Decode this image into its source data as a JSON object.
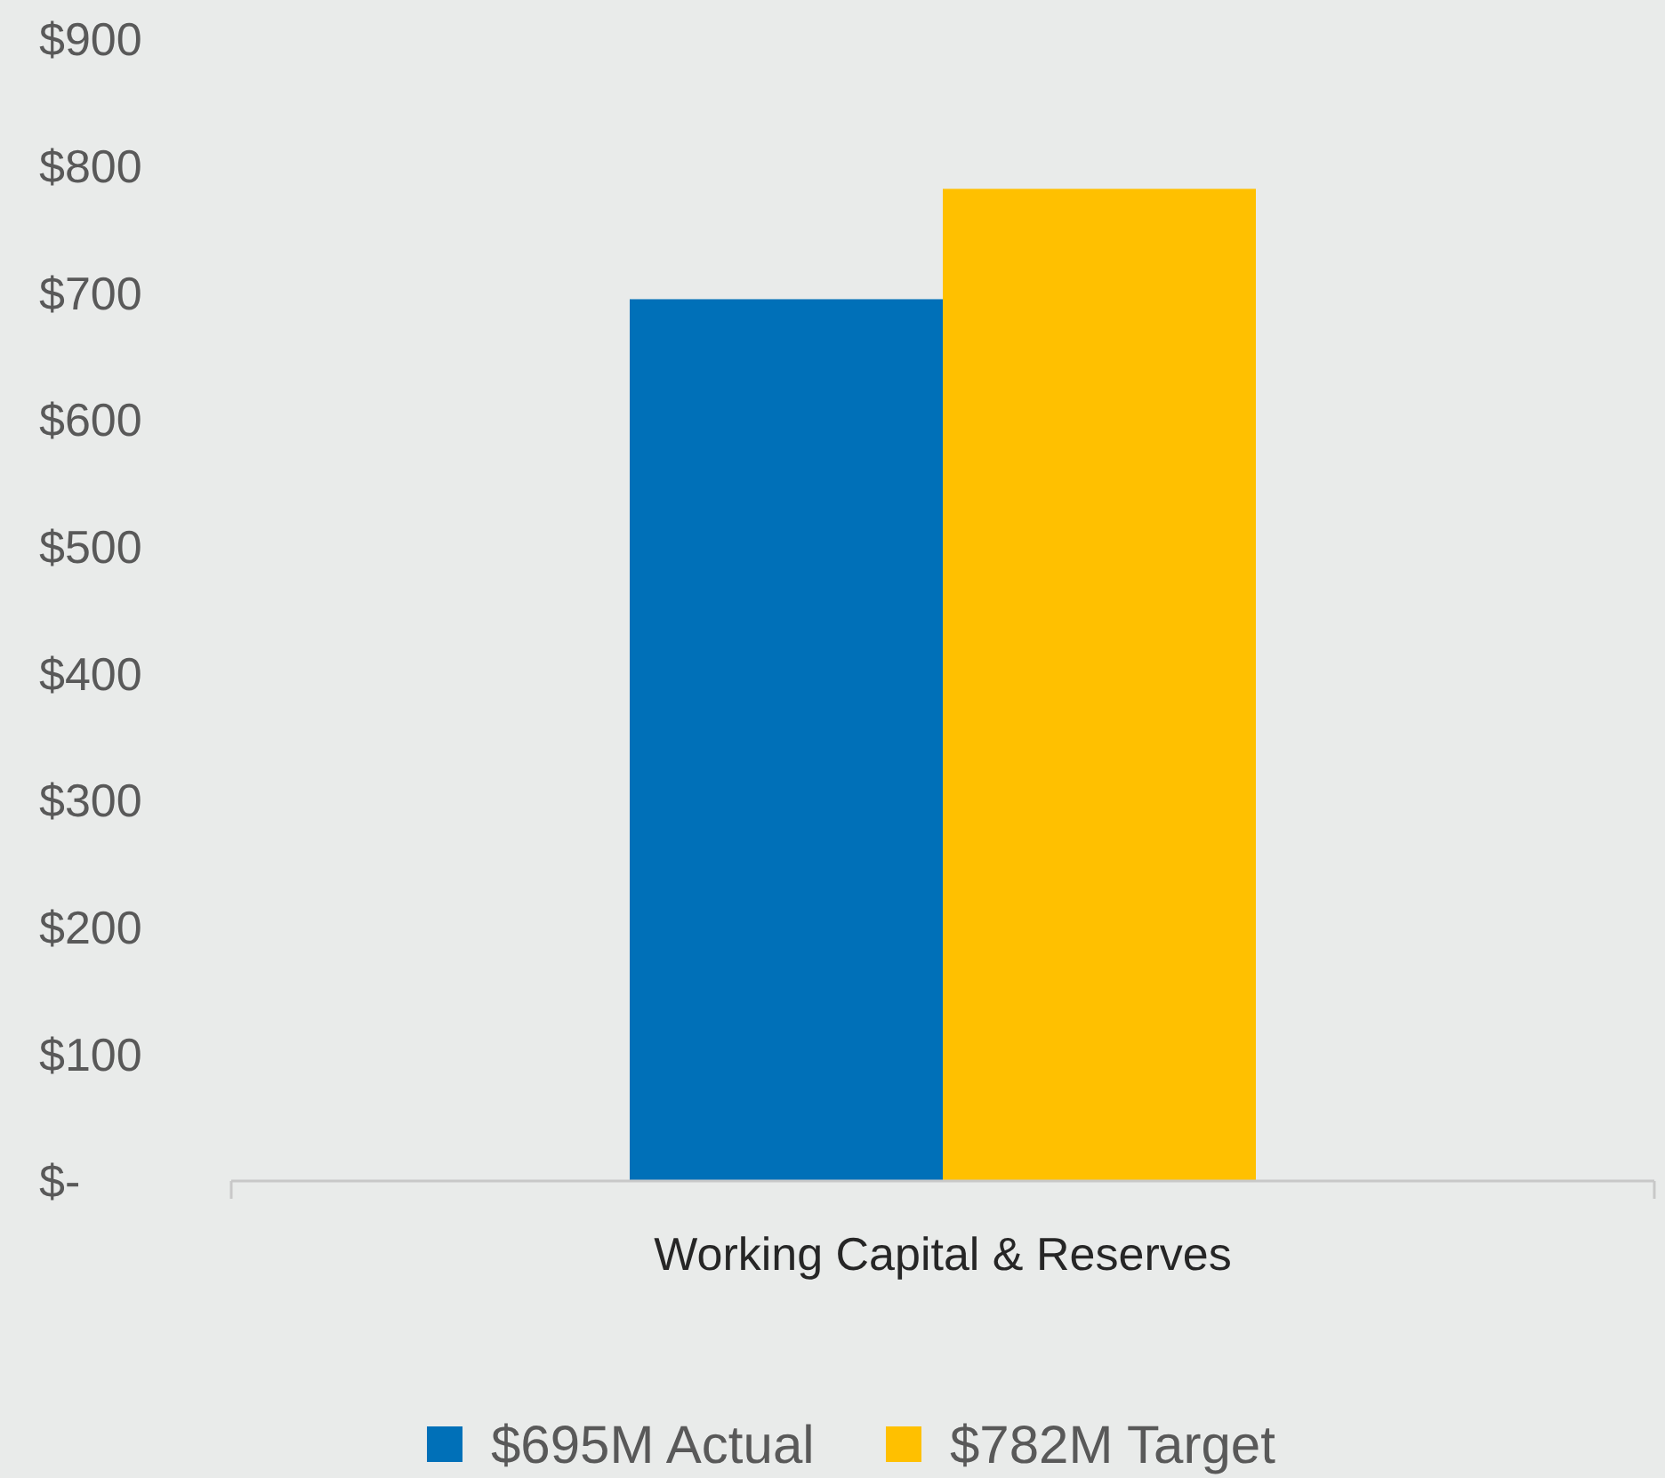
{
  "chart_data": {
    "type": "bar",
    "categories": [
      "Working Capital & Reserves"
    ],
    "series": [
      {
        "name": "$695M Actual",
        "color": "#0070b8",
        "values": [
          695
        ]
      },
      {
        "name": "$782M Target",
        "color": "#ffc000",
        "values": [
          782
        ]
      }
    ],
    "ylim": [
      0,
      900
    ],
    "yticks": [
      {
        "value": 0,
        "label": "$-"
      },
      {
        "value": 100,
        "label": "$100"
      },
      {
        "value": 200,
        "label": "$200"
      },
      {
        "value": 300,
        "label": "$300"
      },
      {
        "value": 400,
        "label": "$400"
      },
      {
        "value": 500,
        "label": "$500"
      },
      {
        "value": 600,
        "label": "$600"
      },
      {
        "value": 700,
        "label": "$700"
      },
      {
        "value": 800,
        "label": "$800"
      },
      {
        "value": 900,
        "label": "$900"
      }
    ],
    "grid": false,
    "legend": "bottom"
  }
}
